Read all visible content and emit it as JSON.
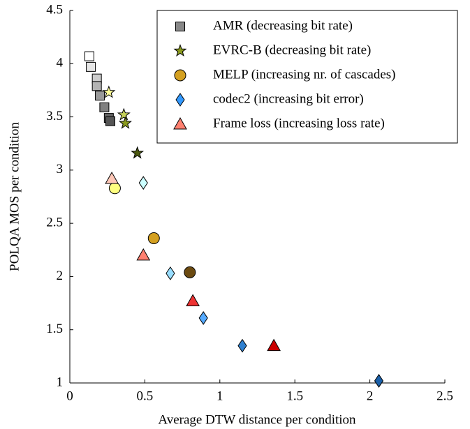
{
  "chart_data": {
    "type": "scatter",
    "x_label": "Average DTW distance per condition",
    "y_label": "POLQA MOS per condition",
    "xlim": [
      0,
      2.5
    ],
    "xticks": [
      0,
      0.5,
      1,
      1.5,
      2,
      2.5
    ],
    "ylim": [
      1,
      4.5
    ],
    "yticks": [
      1,
      1.5,
      2,
      2.5,
      3,
      3.5,
      4,
      4.5
    ],
    "legend": "upper right",
    "series": [
      {
        "name": "AMR (decreasing bit rate)",
        "marker": "square",
        "color": "#888888",
        "x": [
          0.13,
          0.14,
          0.18,
          0.18,
          0.2,
          0.23,
          0.26,
          0.27
        ],
        "values": [
          4.07,
          3.97,
          3.86,
          3.79,
          3.7,
          3.59,
          3.49,
          3.46
        ],
        "colors": [
          "#ffffff",
          "#e6e6e6",
          "#cccccc",
          "#b3b3b3",
          "#999999",
          "#808080",
          "#666666",
          "#555555"
        ]
      },
      {
        "name": "EVRC-B (decreasing bit rate)",
        "marker": "star",
        "color": "#8a9a1e",
        "x": [
          0.26,
          0.36,
          0.37,
          0.45
        ],
        "values": [
          3.73,
          3.52,
          3.44,
          3.16
        ],
        "colors": [
          "#ffff99",
          "#c6d25a",
          "#8a9a1e",
          "#4d5a10"
        ]
      },
      {
        "name": "MELP (increasing nr. of cascades)",
        "marker": "circle",
        "color": "#d4a020",
        "x": [
          0.3,
          0.56,
          0.8
        ],
        "values": [
          2.83,
          2.36,
          2.04
        ],
        "colors": [
          "#ffff80",
          "#d4a020",
          "#6b4a10"
        ]
      },
      {
        "name": "codec2 (increasing bit error)",
        "marker": "diamond",
        "color": "#3399ff",
        "x": [
          0.49,
          0.67,
          0.89,
          1.15,
          2.06
        ],
        "values": [
          2.88,
          2.03,
          1.61,
          1.35,
          1.02
        ],
        "colors": [
          "#ccffff",
          "#99ddff",
          "#55aaff",
          "#2f80d0",
          "#1a5fa8"
        ]
      },
      {
        "name": "Frame loss (increasing loss rate)",
        "marker": "triangle",
        "color": "#ff8070",
        "x": [
          0.28,
          0.49,
          0.82,
          1.36
        ],
        "values": [
          2.92,
          2.2,
          1.77,
          1.35
        ],
        "colors": [
          "#ffc8b8",
          "#ff8070",
          "#ee3333",
          "#cc0000"
        ]
      }
    ]
  }
}
